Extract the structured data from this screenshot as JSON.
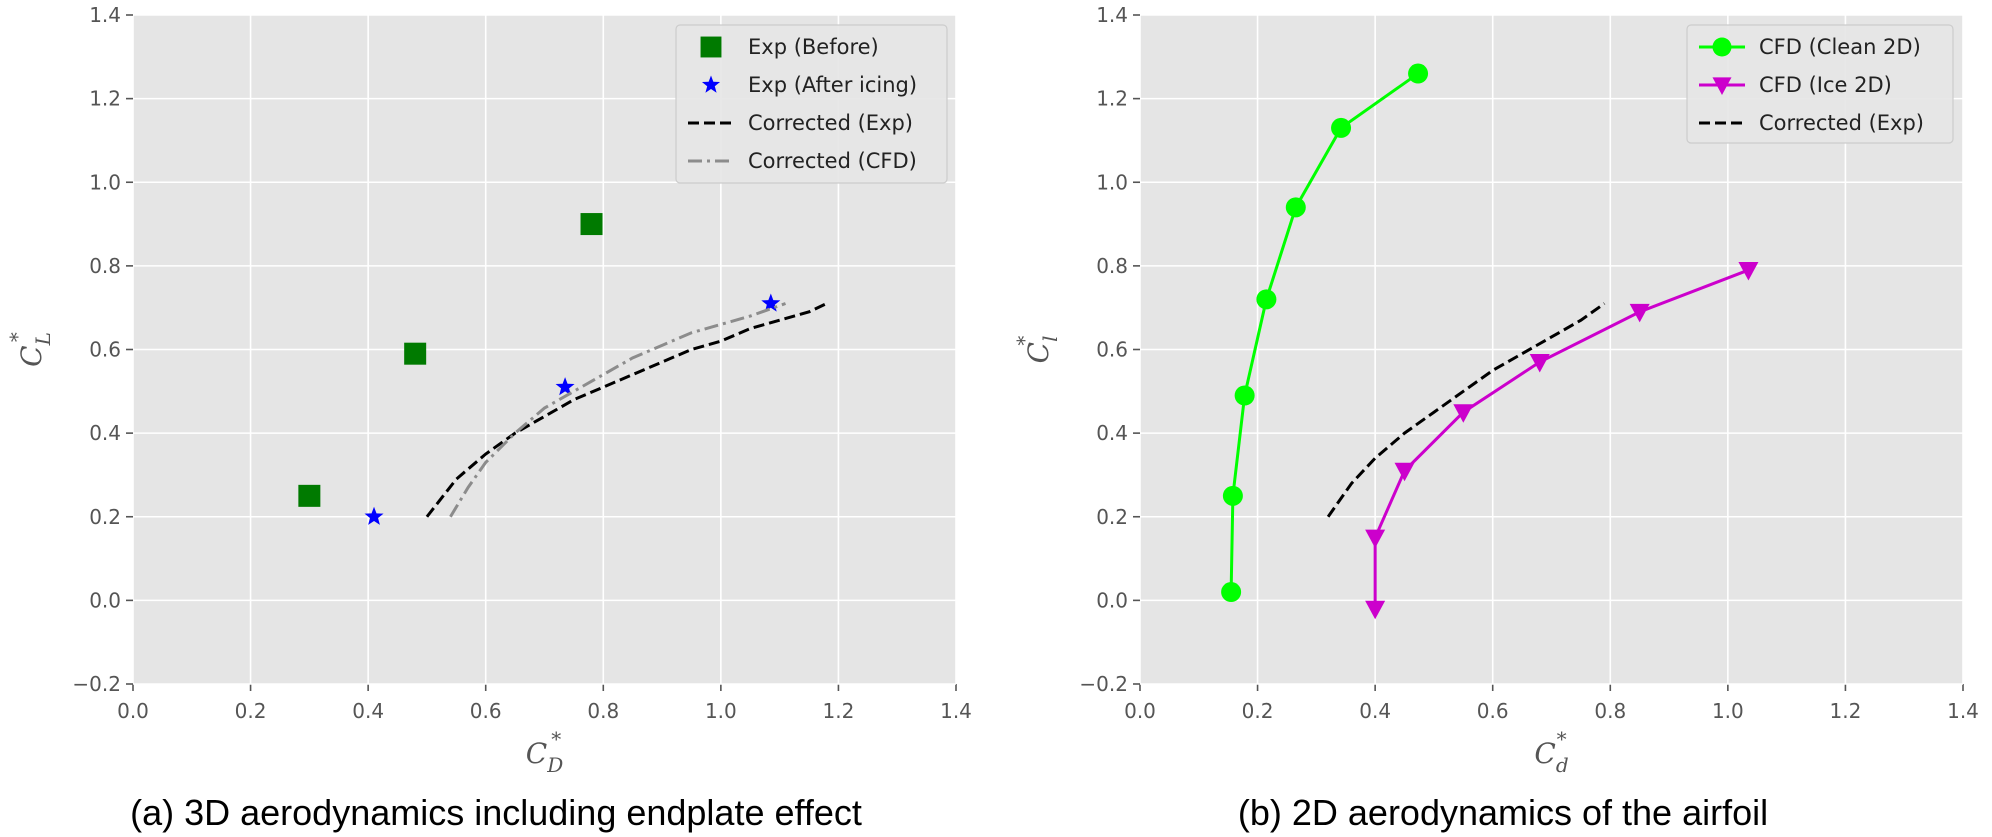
{
  "colors": {
    "plot_bg": "#e5e5e5",
    "grid": "#ffffff",
    "exp_before": "#007a00",
    "exp_after": "#0000ff",
    "corrected_exp": "#000000",
    "corrected_cfd": "#8c8c8c",
    "cfd_clean": "#00ff00",
    "cfd_ice": "#cc00cc"
  },
  "chart_data": [
    {
      "type": "scatter",
      "panel": "a",
      "caption": "(a) 3D aerodynamics including endplate effect",
      "xlabel": {
        "main": "C",
        "sub": "D",
        "sup": "*"
      },
      "ylabel": {
        "main": "C",
        "sub": "L",
        "sup": "*"
      },
      "xlim": [
        0.0,
        1.4
      ],
      "ylim": [
        -0.2,
        1.4
      ],
      "xticks": [
        "0.0",
        "0.2",
        "0.4",
        "0.6",
        "0.8",
        "1.0",
        "1.2",
        "1.4"
      ],
      "yticks": [
        "−0.2",
        "0.0",
        "0.2",
        "0.4",
        "0.6",
        "0.8",
        "1.0",
        "1.2",
        "1.4"
      ],
      "grid": true,
      "legend_position": "top-right",
      "series": [
        {
          "name": "Exp (Before)",
          "style": "square",
          "color_key": "exp_before",
          "x": [
            0.3,
            0.48,
            0.78
          ],
          "y": [
            0.25,
            0.59,
            0.9
          ]
        },
        {
          "name": "Exp (After icing)",
          "style": "star",
          "color_key": "exp_after",
          "x": [
            0.41,
            0.735,
            1.085
          ],
          "y": [
            0.2,
            0.51,
            0.71
          ]
        },
        {
          "name": "Corrected (Exp)",
          "style": "dashed",
          "color_key": "corrected_exp",
          "x": [
            0.5,
            0.55,
            0.6,
            0.65,
            0.7,
            0.75,
            0.8,
            0.85,
            0.9,
            0.95,
            1.0,
            1.05,
            1.1,
            1.15,
            1.18
          ],
          "y": [
            0.2,
            0.29,
            0.35,
            0.4,
            0.44,
            0.48,
            0.51,
            0.54,
            0.57,
            0.6,
            0.62,
            0.65,
            0.67,
            0.69,
            0.71
          ]
        },
        {
          "name": "Corrected (CFD)",
          "style": "dashdot",
          "color_key": "corrected_cfd",
          "x": [
            0.54,
            0.57,
            0.6,
            0.65,
            0.7,
            0.75,
            0.8,
            0.85,
            0.9,
            0.95,
            1.0,
            1.05,
            1.11
          ],
          "y": [
            0.2,
            0.27,
            0.33,
            0.4,
            0.46,
            0.5,
            0.54,
            0.58,
            0.61,
            0.64,
            0.66,
            0.68,
            0.71
          ]
        }
      ]
    },
    {
      "type": "line",
      "panel": "b",
      "caption": "(b) 2D aerodynamics of the airfoil",
      "xlabel": {
        "main": "C",
        "sub": "d",
        "sup": "*"
      },
      "ylabel": {
        "main": "C",
        "sub": "l",
        "sup": "*"
      },
      "xlim": [
        0.0,
        1.4
      ],
      "ylim": [
        -0.2,
        1.4
      ],
      "xticks": [
        "0.0",
        "0.2",
        "0.4",
        "0.6",
        "0.8",
        "1.0",
        "1.2",
        "1.4"
      ],
      "yticks": [
        "−0.2",
        "0.0",
        "0.2",
        "0.4",
        "0.6",
        "0.8",
        "1.0",
        "1.2",
        "1.4"
      ],
      "grid": true,
      "legend_position": "top-right",
      "series": [
        {
          "name": "CFD (Clean 2D)",
          "style": "line-circle",
          "color_key": "cfd_clean",
          "x": [
            0.155,
            0.158,
            0.178,
            0.215,
            0.265,
            0.342,
            0.473
          ],
          "y": [
            0.02,
            0.25,
            0.49,
            0.72,
            0.94,
            1.13,
            1.26
          ]
        },
        {
          "name": "CFD (Ice 2D)",
          "style": "line-triangle",
          "color_key": "cfd_ice",
          "x": [
            0.4,
            0.4,
            0.45,
            0.55,
            0.68,
            0.85,
            1.035
          ],
          "y": [
            -0.02,
            0.15,
            0.31,
            0.45,
            0.57,
            0.69,
            0.79
          ]
        },
        {
          "name": "Corrected (Exp)",
          "style": "dashed",
          "color_key": "corrected_exp",
          "x": [
            0.32,
            0.36,
            0.4,
            0.45,
            0.5,
            0.55,
            0.6,
            0.65,
            0.7,
            0.75,
            0.79
          ],
          "y": [
            0.2,
            0.28,
            0.34,
            0.4,
            0.45,
            0.5,
            0.55,
            0.59,
            0.63,
            0.67,
            0.71
          ]
        }
      ]
    }
  ]
}
